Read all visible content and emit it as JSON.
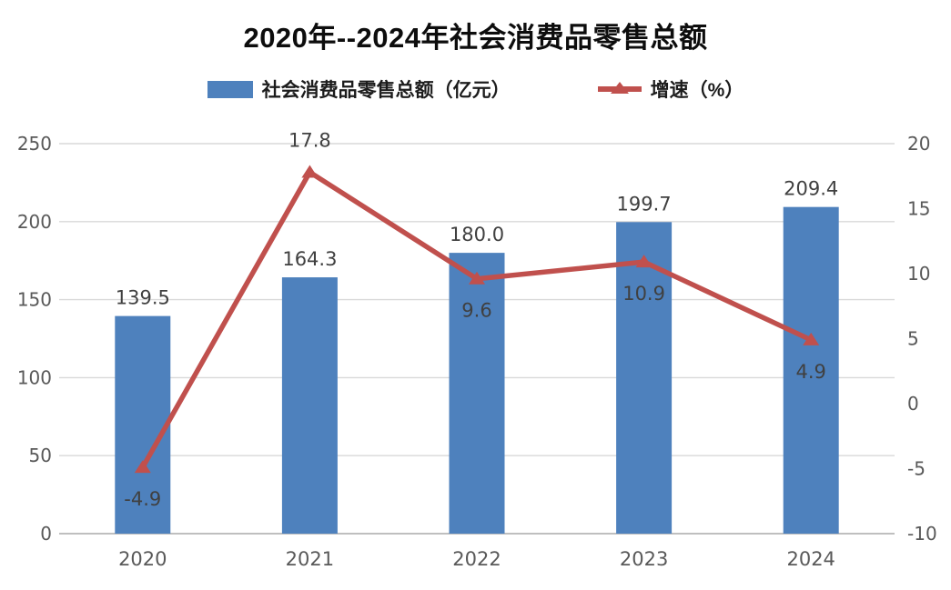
{
  "chart_data": {
    "type": "bar",
    "title": "2020年--2024年社会消费品零售总额",
    "categories": [
      "2020",
      "2021",
      "2022",
      "2023",
      "2024"
    ],
    "series": [
      {
        "name": "社会消费品零售总额（亿元）",
        "type": "bar",
        "axis": "left",
        "color": "#4e81bd",
        "values": [
          139.5,
          164.3,
          180.0,
          199.7,
          209.4
        ],
        "labels": [
          "139.5",
          "164.3",
          "180.0",
          "199.7",
          "209.4"
        ]
      },
      {
        "name": "增速（%）",
        "type": "line",
        "axis": "right",
        "color": "#c0504d",
        "values": [
          -4.9,
          17.8,
          9.6,
          10.9,
          4.9
        ],
        "labels": [
          "-4.9",
          "17.8",
          "9.6",
          "10.9",
          "4.9"
        ],
        "label_side": [
          "below",
          "above",
          "below",
          "below",
          "below"
        ]
      }
    ],
    "left_axis": {
      "min": 0,
      "max": 250,
      "step": 50,
      "ticks": [
        "0",
        "50",
        "100",
        "150",
        "200",
        "250"
      ]
    },
    "right_axis": {
      "min": -10,
      "max": 20,
      "step": 5,
      "ticks": [
        "-10",
        "-5",
        "0",
        "5",
        "10",
        "15",
        "20"
      ]
    },
    "grid": true,
    "legend_position": "top"
  },
  "colors": {
    "bar": "#4e81bd",
    "line": "#c0504d",
    "gridline": "#d9d9d9",
    "baseline": "#bfbfbf",
    "tick_label": "#595959",
    "data_label": "#404040",
    "title": "#0d0d0d"
  }
}
